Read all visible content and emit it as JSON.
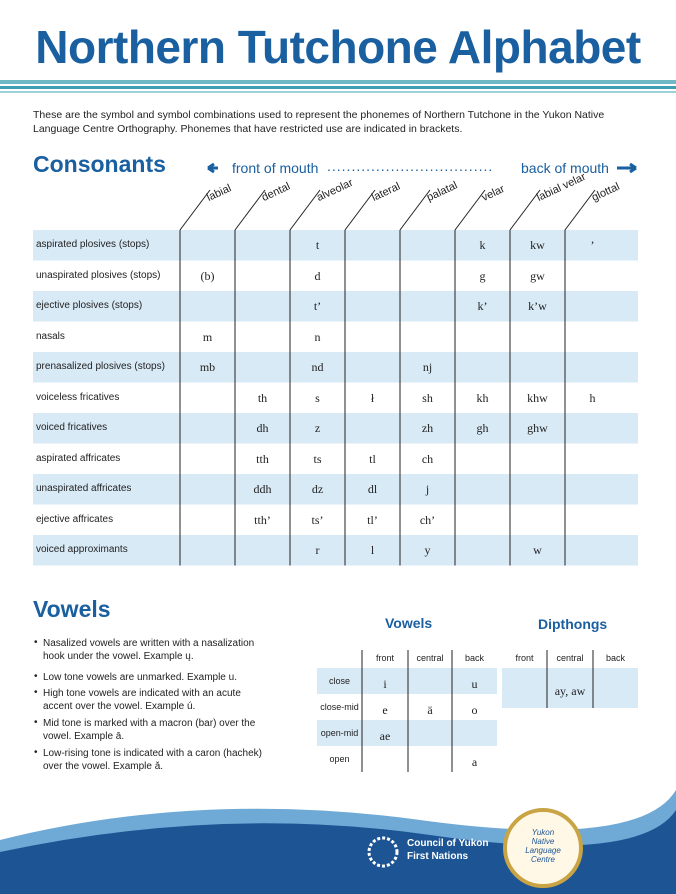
{
  "title": "Northern Tutchone Alphabet",
  "intro": "These are the symbol and symbol combinations used to represent the phonemes of Northern Tutchone in the Yukon Native Language Centre Orthography. Phonemes that have restricted use are indicated in brackets.",
  "consonants": {
    "heading": "Consonants",
    "front": "front of mouth",
    "back": "back of mouth",
    "columns": [
      "labial",
      "dental",
      "alveolar",
      "lateral",
      "palatal",
      "velar",
      "labial velar",
      "glottal"
    ],
    "rows": [
      {
        "label": "aspirated plosives (stops)",
        "cells": [
          null,
          null,
          "t",
          null,
          null,
          "k",
          "kw",
          "’"
        ]
      },
      {
        "label": "unaspirated plosives (stops)",
        "cells": [
          "(b)",
          null,
          "d",
          null,
          null,
          "g",
          "gw",
          null
        ]
      },
      {
        "label": "ejective plosives (stops)",
        "cells": [
          null,
          null,
          "t’",
          null,
          null,
          "k’",
          "k’w",
          null
        ]
      },
      {
        "label": "nasals",
        "cells": [
          "m",
          null,
          "n",
          null,
          null,
          null,
          null,
          null
        ]
      },
      {
        "label": "prenasalized plosives (stops)",
        "cells": [
          "mb",
          null,
          "nd",
          null,
          "nj",
          null,
          null,
          null
        ]
      },
      {
        "label": "voiceless fricatives",
        "cells": [
          null,
          "th",
          "s",
          "ł",
          "sh",
          "kh",
          "khw",
          "h"
        ]
      },
      {
        "label": "voiced fricatives",
        "cells": [
          null,
          "dh",
          "z",
          null,
          "zh",
          "gh",
          "ghw",
          null
        ]
      },
      {
        "label": "aspirated affricates",
        "cells": [
          null,
          "tth",
          "ts",
          "tl",
          "ch",
          null,
          null,
          null
        ]
      },
      {
        "label": "unaspirated affricates",
        "cells": [
          null,
          "ddh",
          "dz",
          "dl",
          "j",
          null,
          null,
          null
        ]
      },
      {
        "label": "ejective affricates",
        "cells": [
          null,
          "tth’",
          "ts’",
          "tl’",
          "ch’",
          null,
          null,
          null
        ]
      },
      {
        "label": "voiced approximants",
        "cells": [
          null,
          null,
          "r",
          "l",
          "y",
          null,
          "w",
          null
        ]
      }
    ]
  },
  "vowels": {
    "heading": "Vowels",
    "bullets": [
      "Nasalized vowels are written with a nasalization hook under the vowel. Example ų.",
      "Low tone vowels are unmarked. Example u.",
      "High tone vowels are indicated with an acute accent over the vowel. Example ú.",
      "Mid tone is marked with a macron (bar) over the vowel. Example ā.",
      "Low-rising tone is indicated with a caron (hachek) over the vowel. Example ǎ."
    ]
  },
  "vowel_table": {
    "title": "Vowels",
    "columns": [
      "front",
      "central",
      "back"
    ],
    "rows": [
      {
        "label": "close",
        "cells": [
          "i",
          null,
          "u"
        ]
      },
      {
        "label": "close-mid",
        "cells": [
          "e",
          "ä",
          "o"
        ]
      },
      {
        "label": "open-mid",
        "cells": [
          "ae",
          null,
          null
        ]
      },
      {
        "label": "open",
        "cells": [
          null,
          null,
          "a"
        ]
      }
    ]
  },
  "dipthong_table": {
    "title": "Dipthongs",
    "columns": [
      "front",
      "central",
      "back"
    ],
    "cells": [
      null,
      "ay, aw",
      null
    ]
  },
  "footer": {
    "org_line1": "Council of Yukon",
    "org_line2": "First Nations",
    "logo_text": "Yukon Native Language Centre"
  }
}
